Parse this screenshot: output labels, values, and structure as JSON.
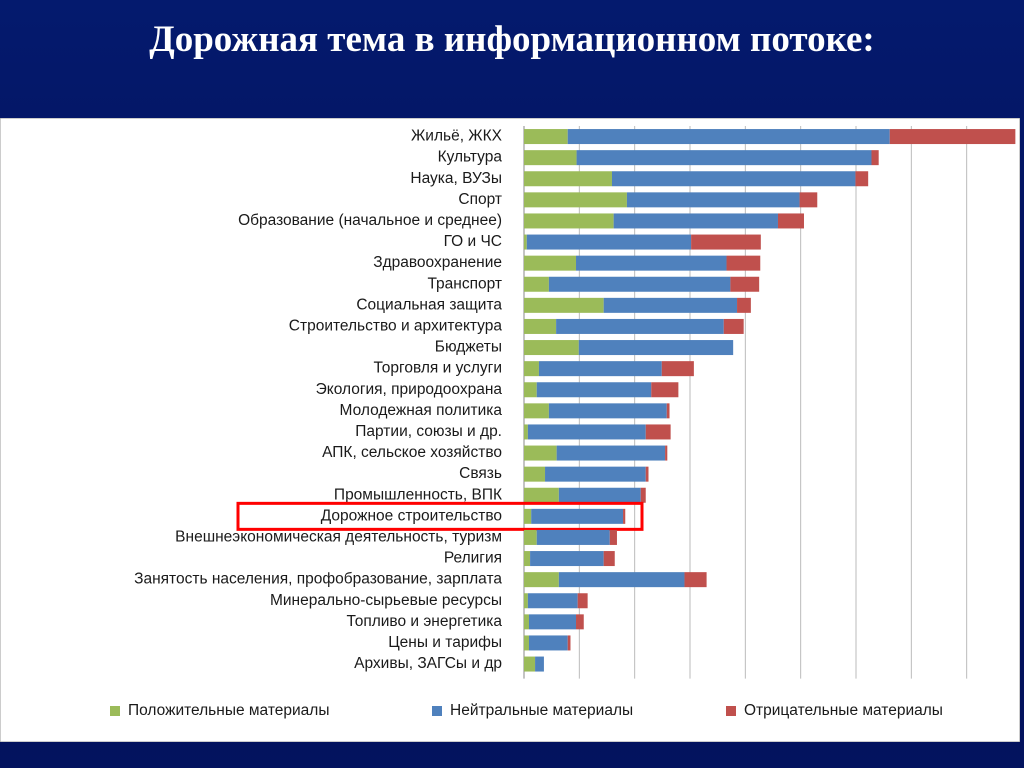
{
  "title": "Дорожная тема в информационном потоке:",
  "chart_data": {
    "type": "stacked-barh",
    "categories": [
      "Жильё, ЖКХ",
      "Культура",
      "Наука, ВУЗы",
      "Спорт",
      "Образование (начальное и среднее)",
      "ГО и ЧС",
      "Здравоохранение",
      "Транспорт",
      "Социальная защита",
      "Строительство и архитектура",
      "Бюджеты",
      "Торговля и услуги",
      "Экология, природоохрана",
      "Молодежная политика",
      "Партии, союзы и др.",
      "АПК, сельское хозяйство",
      "Связь",
      "Промышленность, ВПК",
      "Дорожное строительство",
      "Внешнеэкономическая деятельность, туризм",
      "Религия",
      "Занятость населения, профобразование, зарплата",
      "Минерально-сырьевые  ресурсы",
      "Топливо и энергетика",
      "Цены и тарифы",
      "Архивы, ЗАГСы и др"
    ],
    "series": [
      {
        "name": "Положительные материалы",
        "color": "#9bbb59",
        "values": [
          7.9,
          9.5,
          15.9,
          18.6,
          16.2,
          0.5,
          9.4,
          4.5,
          14.4,
          5.8,
          9.9,
          2.7,
          2.3,
          4.5,
          0.7,
          5.9,
          3.8,
          6.3,
          1.3,
          2.3,
          1.1,
          6.3,
          0.7,
          0.9,
          0.9,
          2
        ]
      },
      {
        "name": "Нейтральные материалы",
        "color": "#4f81bd",
        "values": [
          58.2,
          53.3,
          44,
          31.2,
          29.7,
          29.7,
          27.2,
          32.8,
          24.1,
          30.3,
          27.9,
          22.2,
          20.7,
          21.3,
          21.3,
          19.6,
          18.2,
          14.8,
          16.6,
          13.2,
          13.3,
          22.7,
          9,
          8.5,
          7,
          1.6
        ]
      },
      {
        "name": "Отрицательные материалы",
        "color": "#c0504d",
        "values": [
          22.7,
          1.3,
          2.3,
          3.2,
          4.7,
          12.6,
          6.1,
          5.2,
          2.5,
          3.6,
          0,
          5.8,
          4.9,
          0.5,
          4.5,
          0.4,
          0.5,
          0.9,
          0.4,
          1.3,
          2,
          4,
          1.8,
          1.4,
          0.5,
          0
        ]
      }
    ],
    "xlim": [
      0,
      90
    ],
    "xgrid": [
      0,
      10,
      20,
      30,
      40,
      50,
      60,
      70,
      80,
      90
    ],
    "highlight": 18,
    "highlight_color": "#ff0000",
    "legend": "bottom"
  }
}
